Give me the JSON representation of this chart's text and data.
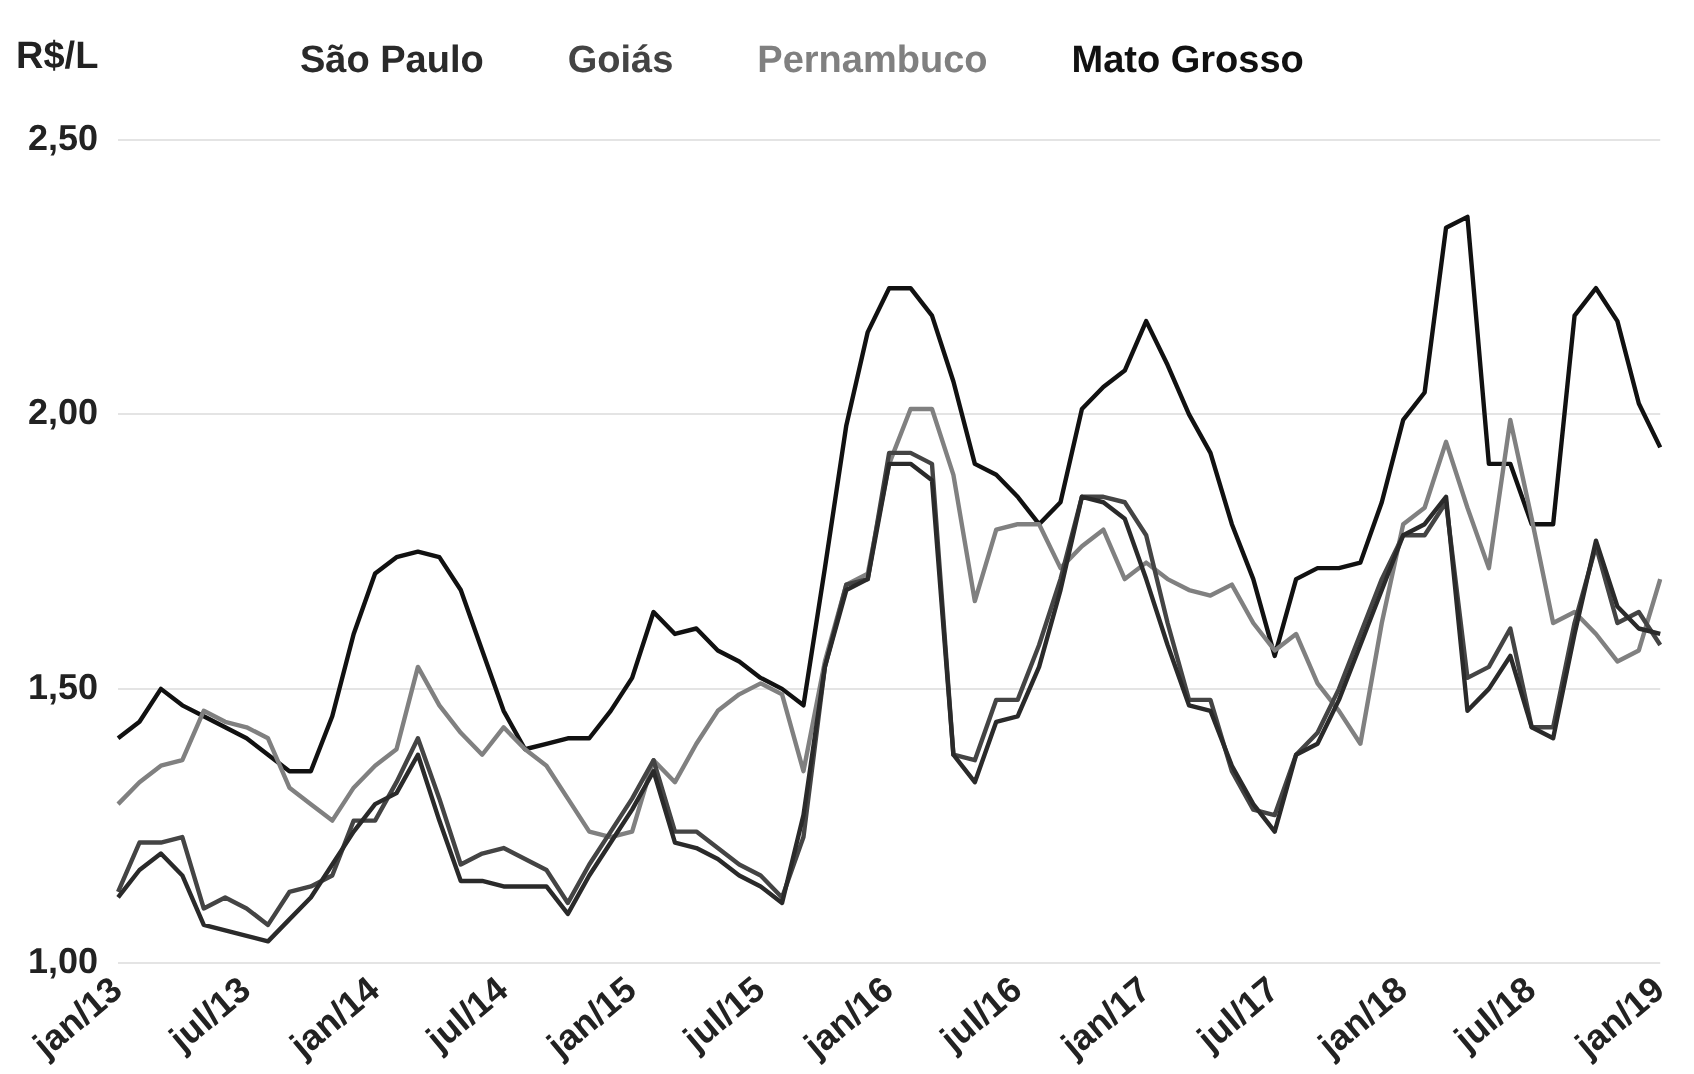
{
  "chart_data": {
    "type": "line",
    "ylabel": "R$/L",
    "categories": [
      "jan/13",
      null,
      null,
      null,
      null,
      null,
      "jul/13",
      null,
      null,
      null,
      null,
      null,
      "jan/14",
      null,
      null,
      null,
      null,
      null,
      "jul/14",
      null,
      null,
      null,
      null,
      null,
      "jan/15",
      null,
      null,
      null,
      null,
      null,
      "jul/15",
      null,
      null,
      null,
      null,
      null,
      "jan/16",
      null,
      null,
      null,
      null,
      null,
      "jul/16",
      null,
      null,
      null,
      null,
      null,
      "jan/17",
      null,
      null,
      null,
      null,
      null,
      "jul/17",
      null,
      null,
      null,
      null,
      null,
      "jan/18",
      null,
      null,
      null,
      null,
      null,
      "jul/18",
      null,
      null,
      null,
      null,
      null,
      "jan/19"
    ],
    "series": [
      {
        "name": "São Paulo",
        "color": "#2a2a2a",
        "values": [
          1.12,
          1.17,
          1.2,
          1.16,
          1.07,
          1.06,
          1.05,
          1.04,
          1.08,
          1.12,
          1.18,
          1.24,
          1.29,
          1.31,
          1.38,
          1.26,
          1.15,
          1.15,
          1.14,
          1.14,
          1.14,
          1.09,
          1.16,
          1.22,
          1.28,
          1.35,
          1.22,
          1.21,
          1.19,
          1.16,
          1.14,
          1.11,
          1.27,
          1.54,
          1.68,
          1.7,
          1.91,
          1.91,
          1.88,
          1.38,
          1.33,
          1.44,
          1.45,
          1.54,
          1.68,
          1.85,
          1.84,
          1.81,
          1.7,
          1.58,
          1.47,
          1.46,
          1.36,
          1.29,
          1.24,
          1.38,
          1.4,
          1.48,
          1.58,
          1.68,
          1.78,
          1.8,
          1.85,
          1.46,
          1.5,
          1.56,
          1.43,
          1.41,
          1.6,
          1.77,
          1.65,
          1.61,
          1.6
        ]
      },
      {
        "name": "Goiás",
        "color": "#444444",
        "values": [
          1.13,
          1.22,
          1.22,
          1.23,
          1.1,
          1.12,
          1.1,
          1.07,
          1.13,
          1.14,
          1.16,
          1.26,
          1.26,
          1.33,
          1.41,
          1.3,
          1.18,
          1.2,
          1.21,
          1.19,
          1.17,
          1.11,
          1.18,
          1.24,
          1.3,
          1.37,
          1.24,
          1.24,
          1.21,
          1.18,
          1.16,
          1.12,
          1.23,
          1.54,
          1.69,
          1.7,
          1.93,
          1.93,
          1.91,
          1.38,
          1.37,
          1.48,
          1.48,
          1.58,
          1.7,
          1.85,
          1.85,
          1.84,
          1.78,
          1.62,
          1.48,
          1.48,
          1.35,
          1.28,
          1.27,
          1.38,
          1.42,
          1.5,
          1.6,
          1.7,
          1.78,
          1.78,
          1.84,
          1.52,
          1.54,
          1.61,
          1.43,
          1.43,
          1.62,
          1.76,
          1.62,
          1.64,
          1.58
        ]
      },
      {
        "name": "Pernambuco",
        "color": "#808080",
        "values": [
          1.29,
          1.33,
          1.36,
          1.37,
          1.46,
          1.44,
          1.43,
          1.41,
          1.32,
          1.29,
          1.26,
          1.32,
          1.36,
          1.39,
          1.54,
          1.47,
          1.42,
          1.38,
          1.43,
          1.39,
          1.36,
          1.3,
          1.24,
          1.23,
          1.24,
          1.37,
          1.33,
          1.4,
          1.46,
          1.49,
          1.51,
          1.49,
          1.35,
          1.55,
          1.69,
          1.71,
          1.91,
          2.01,
          2.01,
          1.89,
          1.66,
          1.79,
          1.8,
          1.8,
          1.72,
          1.76,
          1.79,
          1.7,
          1.73,
          1.7,
          1.68,
          1.67,
          1.69,
          1.62,
          1.57,
          1.6,
          1.51,
          1.46,
          1.4,
          1.62,
          1.8,
          1.83,
          1.95,
          1.83,
          1.72,
          1.99,
          1.81,
          1.62,
          1.64,
          1.6,
          1.55,
          1.57,
          1.7
        ]
      },
      {
        "name": "Mato Grosso",
        "color": "#111111",
        "values": [
          1.41,
          1.44,
          1.5,
          1.47,
          1.45,
          1.43,
          1.41,
          1.38,
          1.35,
          1.35,
          1.45,
          1.6,
          1.71,
          1.74,
          1.75,
          1.74,
          1.68,
          1.57,
          1.46,
          1.39,
          1.4,
          1.41,
          1.41,
          1.46,
          1.52,
          1.64,
          1.6,
          1.61,
          1.57,
          1.55,
          1.52,
          1.5,
          1.47,
          1.72,
          1.98,
          2.15,
          2.23,
          2.23,
          2.18,
          2.06,
          1.91,
          1.89,
          1.85,
          1.8,
          1.84,
          2.01,
          2.05,
          2.08,
          2.17,
          2.09,
          2.0,
          1.93,
          1.8,
          1.7,
          1.56,
          1.7,
          1.72,
          1.72,
          1.73,
          1.84,
          1.99,
          2.04,
          2.34,
          2.36,
          1.91,
          1.91,
          1.8,
          1.8,
          2.18,
          2.23,
          2.17,
          2.02,
          1.94
        ]
      }
    ],
    "ylim": [
      1.0,
      2.5
    ],
    "yticks": [
      {
        "value": 1.0,
        "label": "1,00"
      },
      {
        "value": 1.5,
        "label": "1,50"
      },
      {
        "value": 2.0,
        "label": "2,00"
      },
      {
        "value": 2.5,
        "label": "2,50"
      }
    ],
    "grid": "y",
    "legend": "top",
    "marker": "none",
    "line_style": "solid"
  }
}
